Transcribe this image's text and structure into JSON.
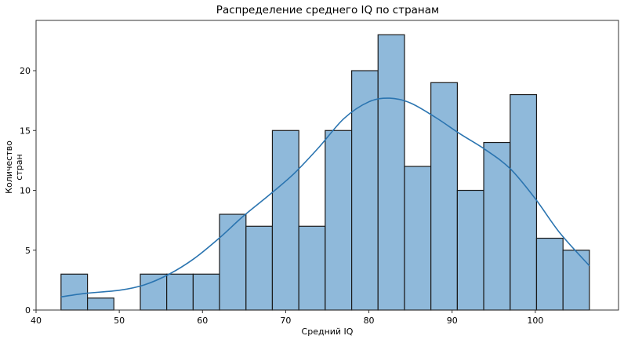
{
  "chart_data": {
    "type": "bar",
    "subtype": "histogram_with_kde",
    "title": "Распределение среднего IQ по странам",
    "xlabel": "Средний IQ",
    "ylabel": "Количество стран",
    "xlim": [
      40,
      110
    ],
    "ylim": [
      0,
      24.2
    ],
    "xticks": [
      40,
      50,
      60,
      70,
      80,
      90,
      100
    ],
    "yticks": [
      0,
      5,
      10,
      15,
      20
    ],
    "grid": false,
    "legend": null,
    "bin_start": 43.0,
    "bin_end": 106.5,
    "bin_count": 20,
    "bin_edges": [
      43.0,
      46.18,
      49.35,
      52.53,
      55.7,
      58.88,
      62.05,
      65.23,
      68.4,
      71.58,
      74.75,
      77.93,
      81.1,
      84.28,
      87.45,
      90.63,
      93.8,
      96.98,
      100.15,
      103.33,
      106.5
    ],
    "values": [
      3,
      1,
      0,
      3,
      3,
      3,
      8,
      7,
      15,
      7,
      15,
      20,
      23,
      12,
      19,
      10,
      14,
      18,
      6,
      5
    ],
    "kde": {
      "x": [
        43,
        46,
        50,
        53,
        56,
        59,
        62,
        65,
        68,
        71,
        74,
        77,
        80,
        82.5,
        85,
        88,
        91,
        94,
        97,
        100,
        103,
        106.5
      ],
      "y": [
        1.1,
        1.4,
        1.65,
        2.1,
        3.0,
        4.3,
        6.0,
        7.9,
        9.6,
        11.4,
        13.6,
        16.0,
        17.4,
        17.7,
        17.3,
        16.1,
        14.7,
        13.4,
        11.8,
        9.3,
        6.4,
        3.7
      ]
    },
    "colors": {
      "bar_fill": "#8fb9da",
      "bar_edge": "#1a1a1a",
      "kde_line": "#2a74b0"
    }
  }
}
